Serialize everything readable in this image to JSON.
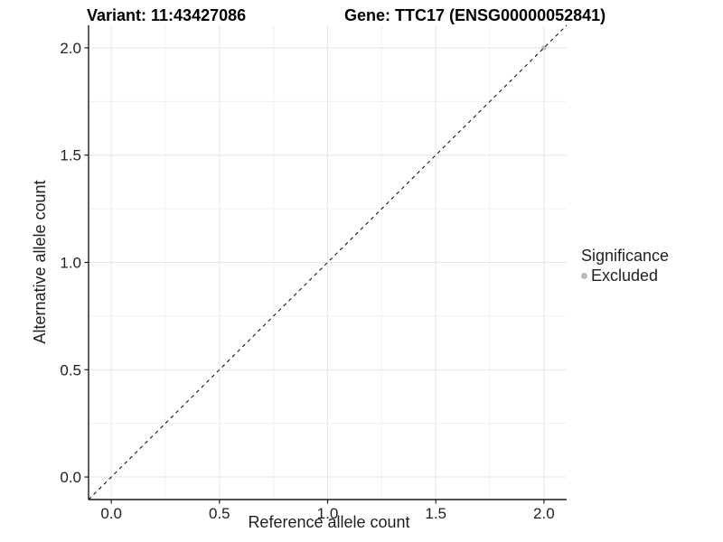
{
  "chart_data": {
    "type": "scatter",
    "titles": {
      "left": "Variant: 11:43427086",
      "right": "Gene: TTC17 (ENSG00000052841)"
    },
    "xlabel": "Reference allele count",
    "ylabel": "Alternative allele count",
    "xlim": [
      -0.105,
      2.105
    ],
    "ylim": [
      -0.105,
      2.105
    ],
    "xticks": [
      0.0,
      0.5,
      1.0,
      1.5,
      2.0
    ],
    "yticks": [
      0.0,
      0.5,
      1.0,
      1.5,
      2.0
    ],
    "xticks_minor": [
      0.25,
      0.75,
      1.25,
      1.75
    ],
    "yticks_minor": [
      0.25,
      0.75,
      1.25,
      1.75
    ],
    "tick_decimals": 1,
    "grid": true,
    "abline": {
      "slope": 1,
      "intercept": 0,
      "linetype": "dashed",
      "color": "#000000"
    },
    "series": [
      {
        "name": "Excluded",
        "color": "#b9b9b9",
        "point_radius": 2.7,
        "points": [
          [
            2.0,
            2.0
          ]
        ]
      }
    ],
    "legend": {
      "title": "Significance",
      "position": "right",
      "items": [
        {
          "label": "Excluded",
          "color": "#b9b9b9"
        }
      ]
    }
  },
  "style": {
    "background": "#ffffff",
    "grid_major": "#e6e6e6",
    "grid_minor": "#f0f0f0",
    "axis_line": "#1a1a1a",
    "tick_mark": "#1a1a1a",
    "tick_label_color": "#1f1f1f",
    "title_color": "#000000"
  }
}
